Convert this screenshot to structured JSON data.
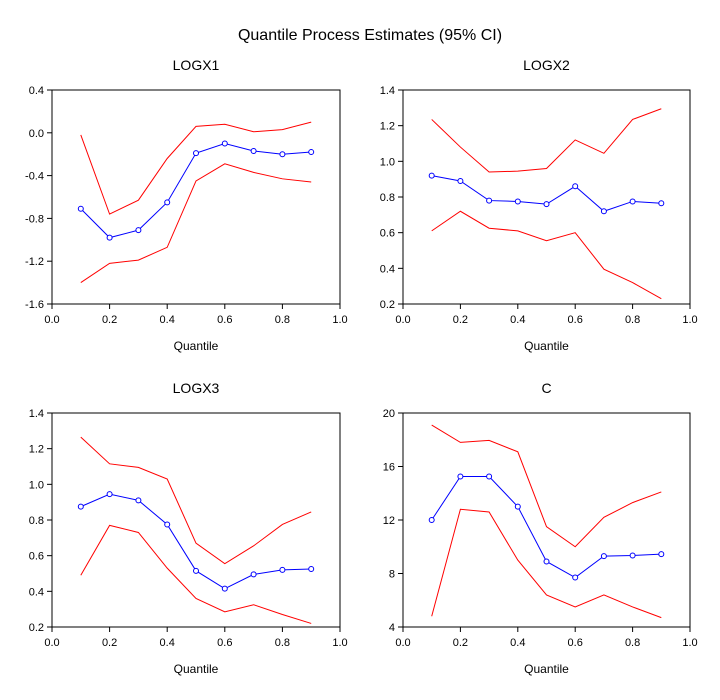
{
  "title": "Quantile Process Estimates (95% CI)",
  "colors": {
    "estimate": "#0000ff",
    "ci": "#ff0000",
    "axis": "#000000"
  },
  "chart_data": [
    {
      "type": "line",
      "title": "LOGX1",
      "xlabel": "Quantile",
      "ylabel": "",
      "xlim": [
        0,
        1
      ],
      "ylim": [
        -1.6,
        0.4
      ],
      "xticks": [
        "0.0",
        "0.2",
        "0.4",
        "0.6",
        "0.8",
        "1.0"
      ],
      "yticks": [
        "-1.6",
        "-1.2",
        "-0.8",
        "-0.4",
        "0.0",
        "0.4"
      ],
      "x": [
        0.1,
        0.2,
        0.3,
        0.4,
        0.5,
        0.6,
        0.7,
        0.8,
        0.9
      ],
      "series": [
        {
          "name": "estimate",
          "values": [
            -0.71,
            -0.98,
            -0.91,
            -0.65,
            -0.19,
            -0.1,
            -0.17,
            -0.2,
            -0.18
          ]
        },
        {
          "name": "upper",
          "values": [
            -0.02,
            -0.76,
            -0.63,
            -0.24,
            0.06,
            0.08,
            0.01,
            0.03,
            0.1
          ]
        },
        {
          "name": "lower",
          "values": [
            -1.4,
            -1.22,
            -1.19,
            -1.07,
            -0.45,
            -0.29,
            -0.37,
            -0.43,
            -0.46
          ]
        }
      ]
    },
    {
      "type": "line",
      "title": "LOGX2",
      "xlabel": "Quantile",
      "ylabel": "",
      "xlim": [
        0,
        1
      ],
      "ylim": [
        0.2,
        1.4
      ],
      "xticks": [
        "0.0",
        "0.2",
        "0.4",
        "0.6",
        "0.8",
        "1.0"
      ],
      "yticks": [
        "0.2",
        "0.4",
        "0.6",
        "0.8",
        "1.0",
        "1.2",
        "1.4"
      ],
      "x": [
        0.1,
        0.2,
        0.3,
        0.4,
        0.5,
        0.6,
        0.7,
        0.8,
        0.9
      ],
      "series": [
        {
          "name": "estimate",
          "values": [
            0.92,
            0.89,
            0.78,
            0.775,
            0.76,
            0.86,
            0.72,
            0.775,
            0.765
          ]
        },
        {
          "name": "upper",
          "values": [
            1.235,
            1.08,
            0.94,
            0.945,
            0.96,
            1.12,
            1.045,
            1.235,
            1.295
          ]
        },
        {
          "name": "lower",
          "values": [
            0.61,
            0.72,
            0.625,
            0.61,
            0.555,
            0.6,
            0.395,
            0.32,
            0.23
          ]
        }
      ]
    },
    {
      "type": "line",
      "title": "LOGX3",
      "xlabel": "Quantile",
      "ylabel": "",
      "xlim": [
        0,
        1
      ],
      "ylim": [
        0.2,
        1.4
      ],
      "xticks": [
        "0.0",
        "0.2",
        "0.4",
        "0.6",
        "0.8",
        "1.0"
      ],
      "yticks": [
        "0.2",
        "0.4",
        "0.6",
        "0.8",
        "1.0",
        "1.2",
        "1.4"
      ],
      "x": [
        0.1,
        0.2,
        0.3,
        0.4,
        0.5,
        0.6,
        0.7,
        0.8,
        0.9
      ],
      "series": [
        {
          "name": "estimate",
          "values": [
            0.875,
            0.945,
            0.91,
            0.775,
            0.515,
            0.415,
            0.495,
            0.52,
            0.525
          ]
        },
        {
          "name": "upper",
          "values": [
            1.265,
            1.115,
            1.095,
            1.03,
            0.67,
            0.555,
            0.655,
            0.775,
            0.845
          ]
        },
        {
          "name": "lower",
          "values": [
            0.49,
            0.77,
            0.73,
            0.53,
            0.36,
            0.285,
            0.325,
            0.27,
            0.22
          ]
        }
      ]
    },
    {
      "type": "line",
      "title": "C",
      "xlabel": "Quantile",
      "ylabel": "",
      "xlim": [
        0,
        1
      ],
      "ylim": [
        4,
        20
      ],
      "xticks": [
        "0.0",
        "0.2",
        "0.4",
        "0.6",
        "0.8",
        "1.0"
      ],
      "yticks": [
        "4",
        "8",
        "12",
        "16",
        "20"
      ],
      "x": [
        0.1,
        0.2,
        0.3,
        0.4,
        0.5,
        0.6,
        0.7,
        0.8,
        0.9
      ],
      "series": [
        {
          "name": "estimate",
          "values": [
            12.0,
            15.25,
            15.25,
            13.0,
            8.9,
            7.7,
            9.3,
            9.35,
            9.45
          ]
        },
        {
          "name": "upper",
          "values": [
            19.1,
            17.8,
            17.95,
            17.1,
            11.5,
            10.0,
            12.2,
            13.3,
            14.1
          ]
        },
        {
          "name": "lower",
          "values": [
            4.8,
            12.8,
            12.6,
            9.0,
            6.4,
            5.5,
            6.4,
            5.5,
            4.7
          ]
        }
      ]
    }
  ]
}
